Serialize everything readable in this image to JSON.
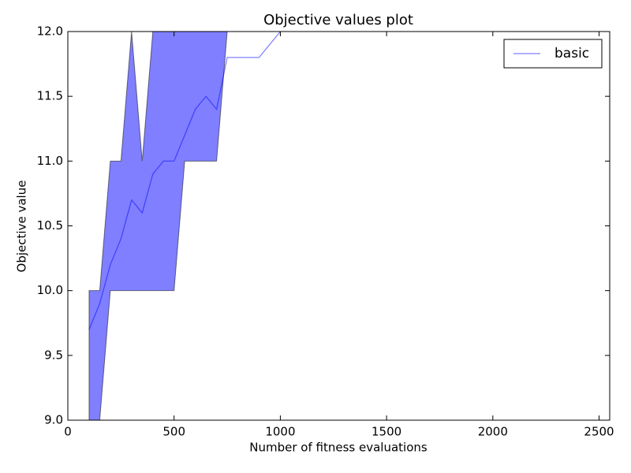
{
  "chart_data": {
    "type": "line",
    "title": "Objective values plot",
    "xlabel": "Number of fitness evaluations",
    "ylabel": "Objective value",
    "xlim": [
      0,
      2550
    ],
    "ylim": [
      9,
      12
    ],
    "xticks": [
      0,
      500,
      1000,
      1500,
      2000,
      2500
    ],
    "yticks": [
      {
        "value": 9,
        "label": "9.0"
      },
      {
        "value": 9.5,
        "label": "9.5"
      },
      {
        "value": 10,
        "label": "10.0"
      },
      {
        "value": 10.5,
        "label": "10.5"
      },
      {
        "value": 11,
        "label": "11.0"
      },
      {
        "value": 11.5,
        "label": "11.5"
      },
      {
        "value": 12,
        "label": "12.0"
      }
    ],
    "legend": "upper right",
    "series": [
      {
        "name": "basic",
        "color": "#0000ff",
        "x": [
          100,
          150,
          200,
          250,
          300,
          350,
          400,
          450,
          500,
          550,
          600,
          650,
          700,
          750,
          800,
          850,
          900,
          950,
          1000
        ],
        "values": [
          9.7,
          9.9,
          10.2,
          10.4,
          10.7,
          10.6,
          10.9,
          11.0,
          11.0,
          11.2,
          11.4,
          11.5,
          11.4,
          11.8,
          11.8,
          11.8,
          11.8,
          11.9,
          12.0
        ]
      }
    ],
    "band": {
      "color": "#0000ff",
      "x": [
        100,
        150,
        200,
        250,
        300,
        350,
        400,
        450,
        500,
        550,
        600,
        650,
        700,
        750
      ],
      "lower": [
        9.0,
        9.0,
        10.0,
        10.0,
        10.0,
        10.0,
        10.0,
        10.0,
        10.0,
        11.0,
        11.0,
        11.0,
        11.0,
        12.0
      ],
      "upper": [
        10.0,
        10.0,
        11.0,
        11.0,
        12.0,
        11.0,
        12.0,
        12.0,
        12.0,
        12.0,
        12.0,
        12.0,
        12.0,
        12.0
      ]
    }
  }
}
